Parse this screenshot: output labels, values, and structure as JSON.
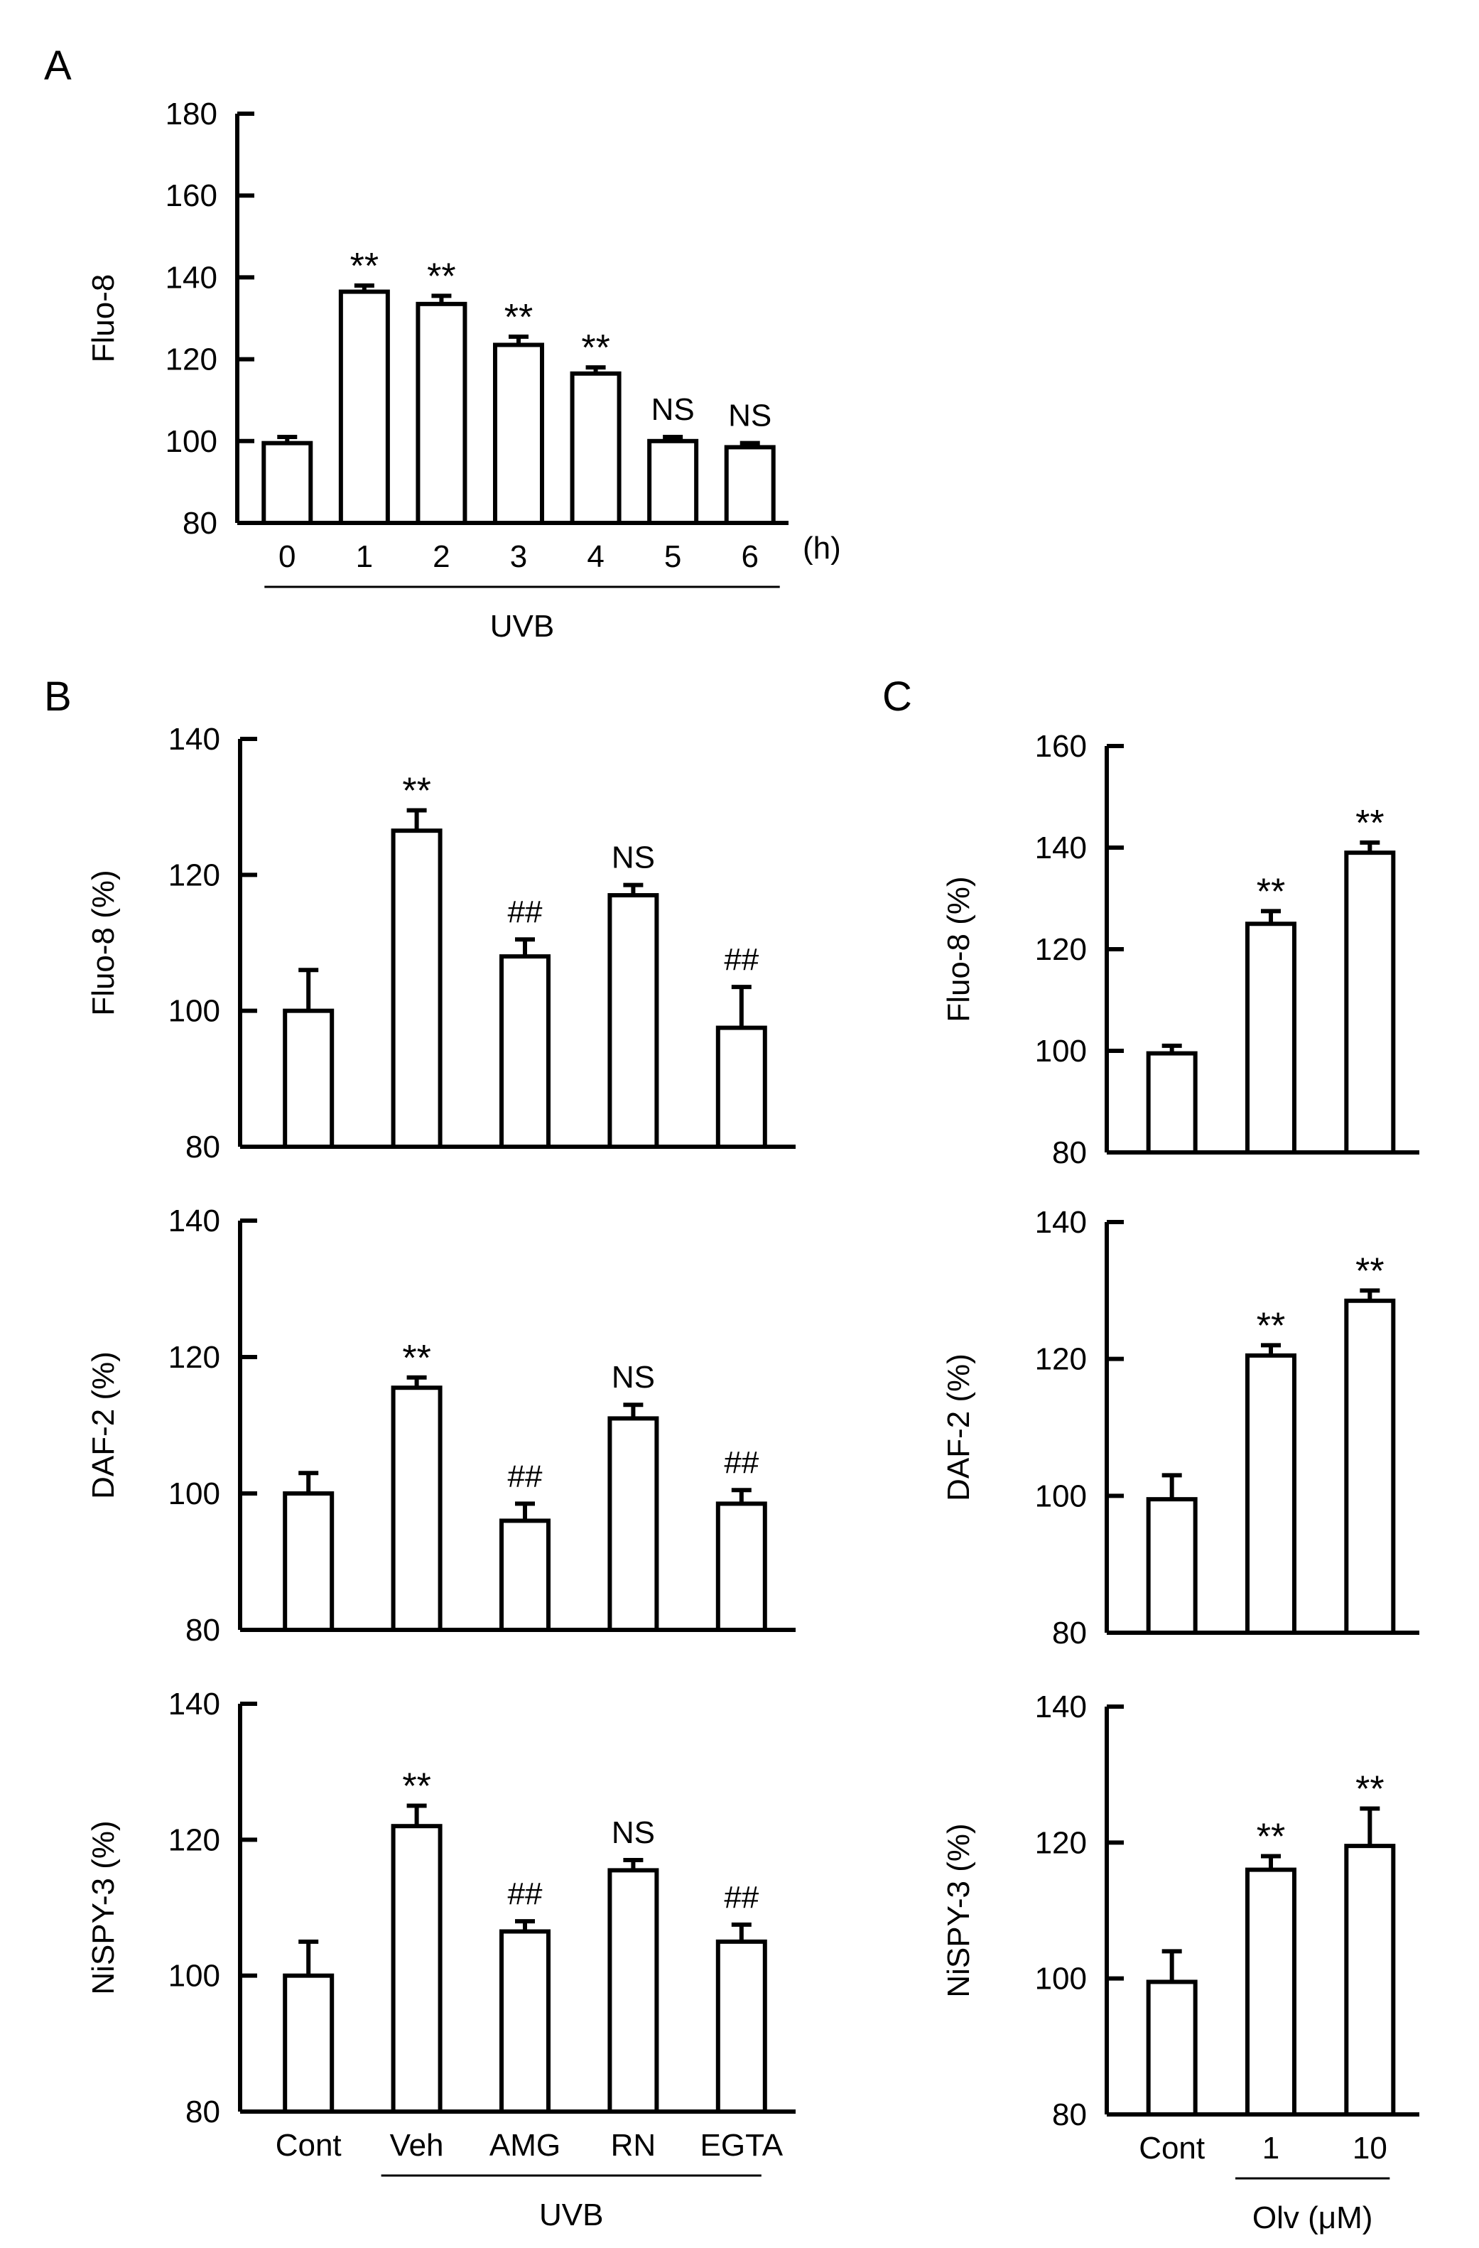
{
  "figure": {
    "bar_color": "#ffffff",
    "line_color": "#000000"
  },
  "chart_data": [
    {
      "id": "A",
      "panel_label": "A",
      "type": "bar",
      "ylabel": "Fluo-8",
      "ylim": [
        80,
        180
      ],
      "yticks": [
        80,
        100,
        120,
        140,
        160,
        180
      ],
      "categories": [
        "0",
        "1",
        "2",
        "3",
        "4",
        "5",
        "6"
      ],
      "values": [
        99.5,
        136.5,
        133.5,
        123.5,
        116.5,
        100,
        98.5
      ],
      "errors": [
        1.5,
        1.5,
        2,
        2,
        1.5,
        1,
        1
      ],
      "annotations": [
        "",
        "**",
        "**",
        "**",
        "**",
        "NS",
        "NS"
      ],
      "x_unit": "(h)",
      "group_label": "UVB",
      "group_range": [
        0,
        6
      ]
    },
    {
      "id": "B1",
      "panel_label": "B",
      "type": "bar",
      "ylabel": "Fluo-8  (%)",
      "ylim": [
        80,
        140
      ],
      "yticks": [
        80,
        100,
        120,
        140
      ],
      "categories": [
        "Cont",
        "Veh",
        "AMG",
        "RN",
        "EGTA"
      ],
      "show_categories": false,
      "values": [
        100,
        126.5,
        108,
        117,
        97.5
      ],
      "errors": [
        6,
        3,
        2.5,
        1.5,
        6
      ],
      "annotations": [
        "",
        "**",
        "##",
        "NS",
        "##"
      ]
    },
    {
      "id": "B2",
      "type": "bar",
      "ylabel": "DAF-2  (%)",
      "ylim": [
        80,
        140
      ],
      "yticks": [
        80,
        100,
        120,
        140
      ],
      "categories": [
        "Cont",
        "Veh",
        "AMG",
        "RN",
        "EGTA"
      ],
      "show_categories": false,
      "values": [
        100,
        115.5,
        96,
        111,
        98.5
      ],
      "errors": [
        3,
        1.5,
        2.5,
        2,
        2
      ],
      "annotations": [
        "",
        "**",
        "##",
        "NS",
        "##"
      ]
    },
    {
      "id": "B3",
      "type": "bar",
      "ylabel": "NiSPY-3  (%)",
      "ylim": [
        80,
        140
      ],
      "yticks": [
        80,
        100,
        120,
        140
      ],
      "categories": [
        "Cont",
        "Veh",
        "AMG",
        "RN",
        "EGTA"
      ],
      "show_categories": true,
      "values": [
        100,
        122,
        106.5,
        115.5,
        105
      ],
      "errors": [
        5,
        3,
        1.5,
        1.5,
        2.5
      ],
      "annotations": [
        "",
        "**",
        "##",
        "NS",
        "##"
      ],
      "group_label": "UVB",
      "group_range": [
        1,
        4
      ]
    },
    {
      "id": "C1",
      "panel_label": "C",
      "type": "bar",
      "ylabel": "Fluo-8  (%)",
      "ylim": [
        80,
        160
      ],
      "yticks": [
        80,
        100,
        120,
        140,
        160
      ],
      "categories": [
        "Cont",
        "1",
        "10"
      ],
      "show_categories": false,
      "values": [
        99.5,
        125,
        139
      ],
      "errors": [
        1.5,
        2.5,
        2
      ],
      "annotations": [
        "",
        "**",
        "**"
      ]
    },
    {
      "id": "C2",
      "type": "bar",
      "ylabel": "DAF-2  (%)",
      "ylim": [
        80,
        140
      ],
      "yticks": [
        80,
        100,
        120,
        140
      ],
      "categories": [
        "Cont",
        "1",
        "10"
      ],
      "show_categories": false,
      "values": [
        99.5,
        120.5,
        128.5
      ],
      "errors": [
        3.5,
        1.5,
        1.5
      ],
      "annotations": [
        "",
        "**",
        "**"
      ]
    },
    {
      "id": "C3",
      "type": "bar",
      "ylabel": "NiSPY-3  (%)",
      "ylim": [
        80,
        140
      ],
      "yticks": [
        80,
        100,
        120,
        140
      ],
      "categories": [
        "Cont",
        "1",
        "10"
      ],
      "show_categories": true,
      "values": [
        99.5,
        116,
        119.5
      ],
      "errors": [
        4.5,
        2,
        5.5
      ],
      "annotations": [
        "",
        "**",
        "**"
      ],
      "group_label": "Olv (μM)",
      "group_range": [
        1,
        2
      ]
    }
  ]
}
